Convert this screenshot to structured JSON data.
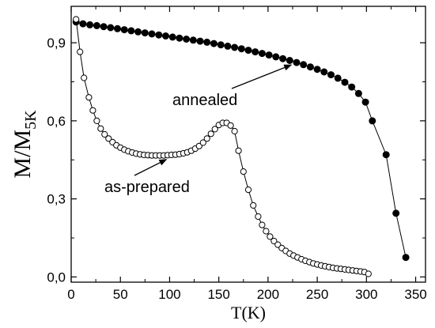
{
  "chart_data": {
    "type": "scatter",
    "title": "",
    "xlabel": "T(K)",
    "ylabel_main": "M/M",
    "ylabel_sub": "5K",
    "xlim": [
      0,
      360
    ],
    "ylim": [
      -0.02,
      1.04
    ],
    "xticks": [
      0,
      50,
      100,
      150,
      200,
      250,
      300,
      350
    ],
    "yticks": [
      0.0,
      0.3,
      0.6,
      0.9
    ],
    "ytick_labels": [
      "0,0",
      "0,3",
      "0,6",
      "0,9"
    ],
    "grid": false,
    "legend": "none",
    "series": [
      {
        "label": "annealed",
        "marker": "filled-circle",
        "connected": true,
        "x": [
          5,
          15,
          25,
          35,
          45,
          55,
          65,
          75,
          85,
          95,
          105,
          115,
          125,
          135,
          145,
          155,
          165,
          175,
          185,
          195,
          205,
          215,
          225,
          235,
          245,
          255,
          265,
          275,
          285,
          295,
          305,
          315,
          325,
          335,
          342
        ],
        "y": [
          0.98,
          0.972,
          0.966,
          0.96,
          0.954,
          0.948,
          0.942,
          0.936,
          0.93,
          0.925,
          0.92,
          0.914,
          0.908,
          0.902,
          0.896,
          0.89,
          0.884,
          0.877,
          0.869,
          0.861,
          0.852,
          0.843,
          0.833,
          0.822,
          0.81,
          0.796,
          0.779,
          0.756,
          0.718,
          0.672,
          0.6,
          0.47,
          0.245,
          0.075,
          0.0
        ],
        "x_plot": [
          5,
          12,
          19,
          26,
          33,
          40,
          47,
          54,
          61,
          68,
          75,
          82,
          89,
          96,
          103,
          110,
          117,
          124,
          131,
          138,
          145,
          152,
          159,
          166,
          173,
          180,
          187,
          194,
          201,
          208,
          215,
          222,
          229,
          236,
          243,
          250,
          257,
          264,
          271,
          278,
          285,
          292,
          299,
          306,
          320,
          330,
          340
        ],
        "y_plot": [
          0.98,
          0.973,
          0.969,
          0.966,
          0.962,
          0.958,
          0.954,
          0.95,
          0.946,
          0.942,
          0.938,
          0.934,
          0.93,
          0.926,
          0.922,
          0.918,
          0.914,
          0.91,
          0.906,
          0.902,
          0.897,
          0.892,
          0.887,
          0.882,
          0.877,
          0.871,
          0.865,
          0.859,
          0.853,
          0.846,
          0.839,
          0.832,
          0.824,
          0.816,
          0.807,
          0.798,
          0.788,
          0.777,
          0.764,
          0.748,
          0.73,
          0.705,
          0.672,
          0.6,
          0.47,
          0.245,
          0.075
        ]
      },
      {
        "label": "as-prepared",
        "marker": "open-circle",
        "connected": true,
        "x": [
          5,
          9,
          13,
          18,
          22,
          26,
          30,
          34,
          38,
          42,
          46,
          50,
          54,
          58,
          62,
          66,
          70,
          74,
          78,
          82,
          86,
          90,
          94,
          98,
          102,
          106,
          110,
          114,
          118,
          122,
          126,
          130,
          134,
          138,
          142,
          146,
          150,
          154,
          158,
          162,
          166,
          170,
          175,
          180,
          185,
          190,
          194,
          198,
          202,
          206,
          210,
          214,
          218,
          222,
          226,
          230,
          234,
          238,
          242,
          246,
          250,
          254,
          258,
          262,
          266,
          270,
          274,
          278,
          282,
          286,
          290,
          294,
          298,
          302
        ],
        "y": [
          0.99,
          0.865,
          0.765,
          0.69,
          0.64,
          0.6,
          0.57,
          0.548,
          0.532,
          0.518,
          0.506,
          0.497,
          0.489,
          0.483,
          0.478,
          0.474,
          0.471,
          0.469,
          0.468,
          0.467,
          0.467,
          0.467,
          0.467,
          0.468,
          0.469,
          0.47,
          0.472,
          0.475,
          0.479,
          0.485,
          0.493,
          0.503,
          0.516,
          0.532,
          0.55,
          0.568,
          0.584,
          0.592,
          0.592,
          0.582,
          0.56,
          0.485,
          0.405,
          0.335,
          0.275,
          0.232,
          0.2,
          0.176,
          0.155,
          0.138,
          0.124,
          0.111,
          0.1,
          0.09,
          0.082,
          0.075,
          0.068,
          0.062,
          0.057,
          0.052,
          0.048,
          0.044,
          0.041,
          0.038,
          0.035,
          0.033,
          0.031,
          0.029,
          0.027,
          0.025,
          0.023,
          0.021,
          0.019,
          0.012
        ]
      }
    ],
    "annotations": [
      {
        "text": "annealed",
        "arrow_to": [
          222,
          0.833
        ]
      },
      {
        "text": "as-prepared",
        "arrow_to": [
          100,
          0.467
        ]
      }
    ]
  }
}
